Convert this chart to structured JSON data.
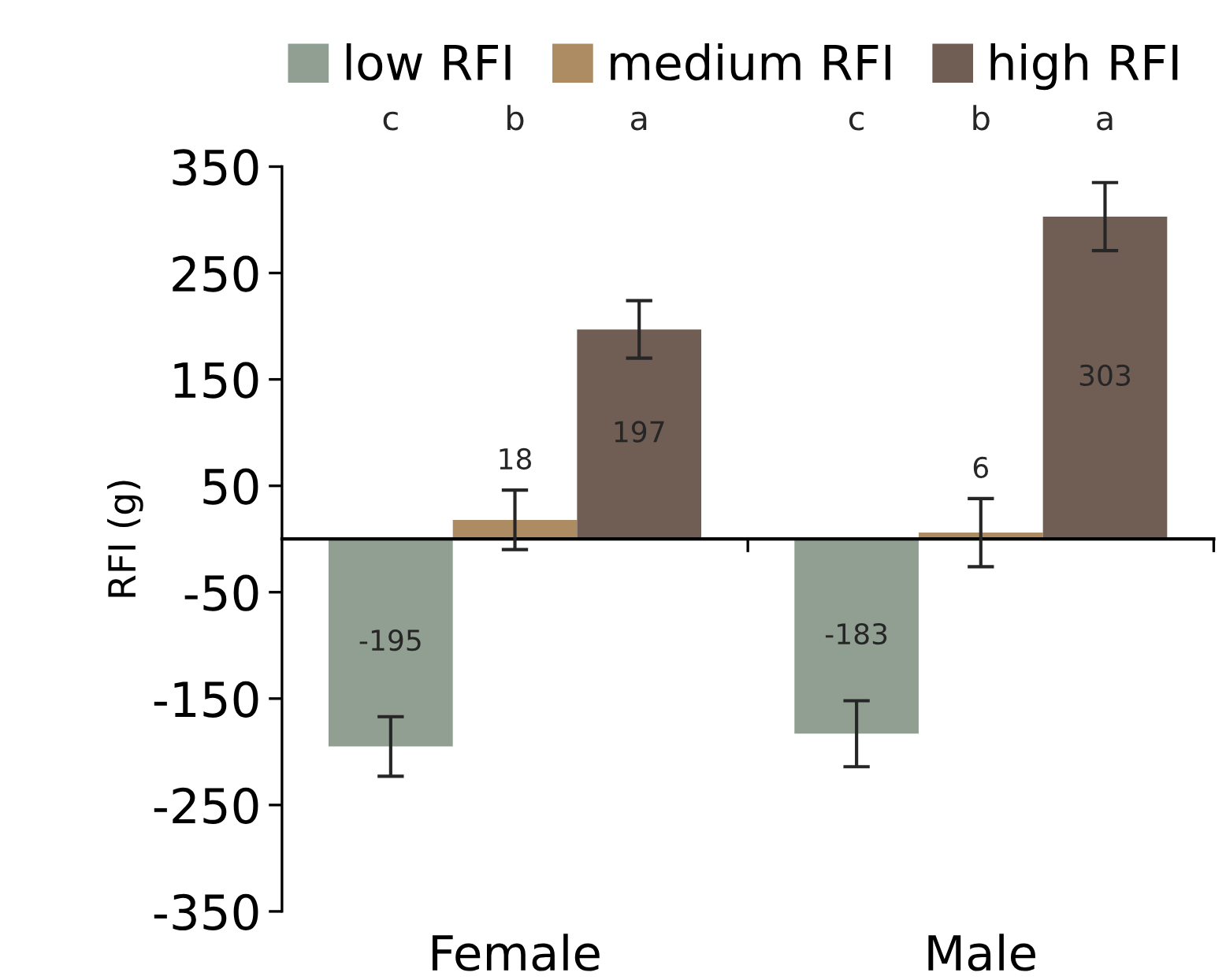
{
  "chart_data": {
    "type": "bar",
    "ylabel": "RFI (g)",
    "categories": [
      "Female",
      "Male"
    ],
    "series": [
      {
        "name": "low RFI",
        "color": "#919f93",
        "values": [
          -195,
          -183
        ],
        "errors": [
          28,
          31
        ]
      },
      {
        "name": "medium RFI",
        "color": "#ad8c63",
        "values": [
          18,
          6
        ],
        "errors": [
          28,
          32
        ]
      },
      {
        "name": "high RFI",
        "color": "#705e54",
        "values": [
          197,
          303
        ],
        "errors": [
          27,
          32
        ]
      }
    ],
    "ylim": [
      -350,
      350
    ],
    "yticks": [
      -350,
      -250,
      -150,
      -50,
      50,
      150,
      250,
      350
    ],
    "data_labels": true,
    "legend": "top",
    "grid": false,
    "annotations": [
      "c",
      "b",
      "a",
      "c",
      "b",
      "a"
    ]
  }
}
